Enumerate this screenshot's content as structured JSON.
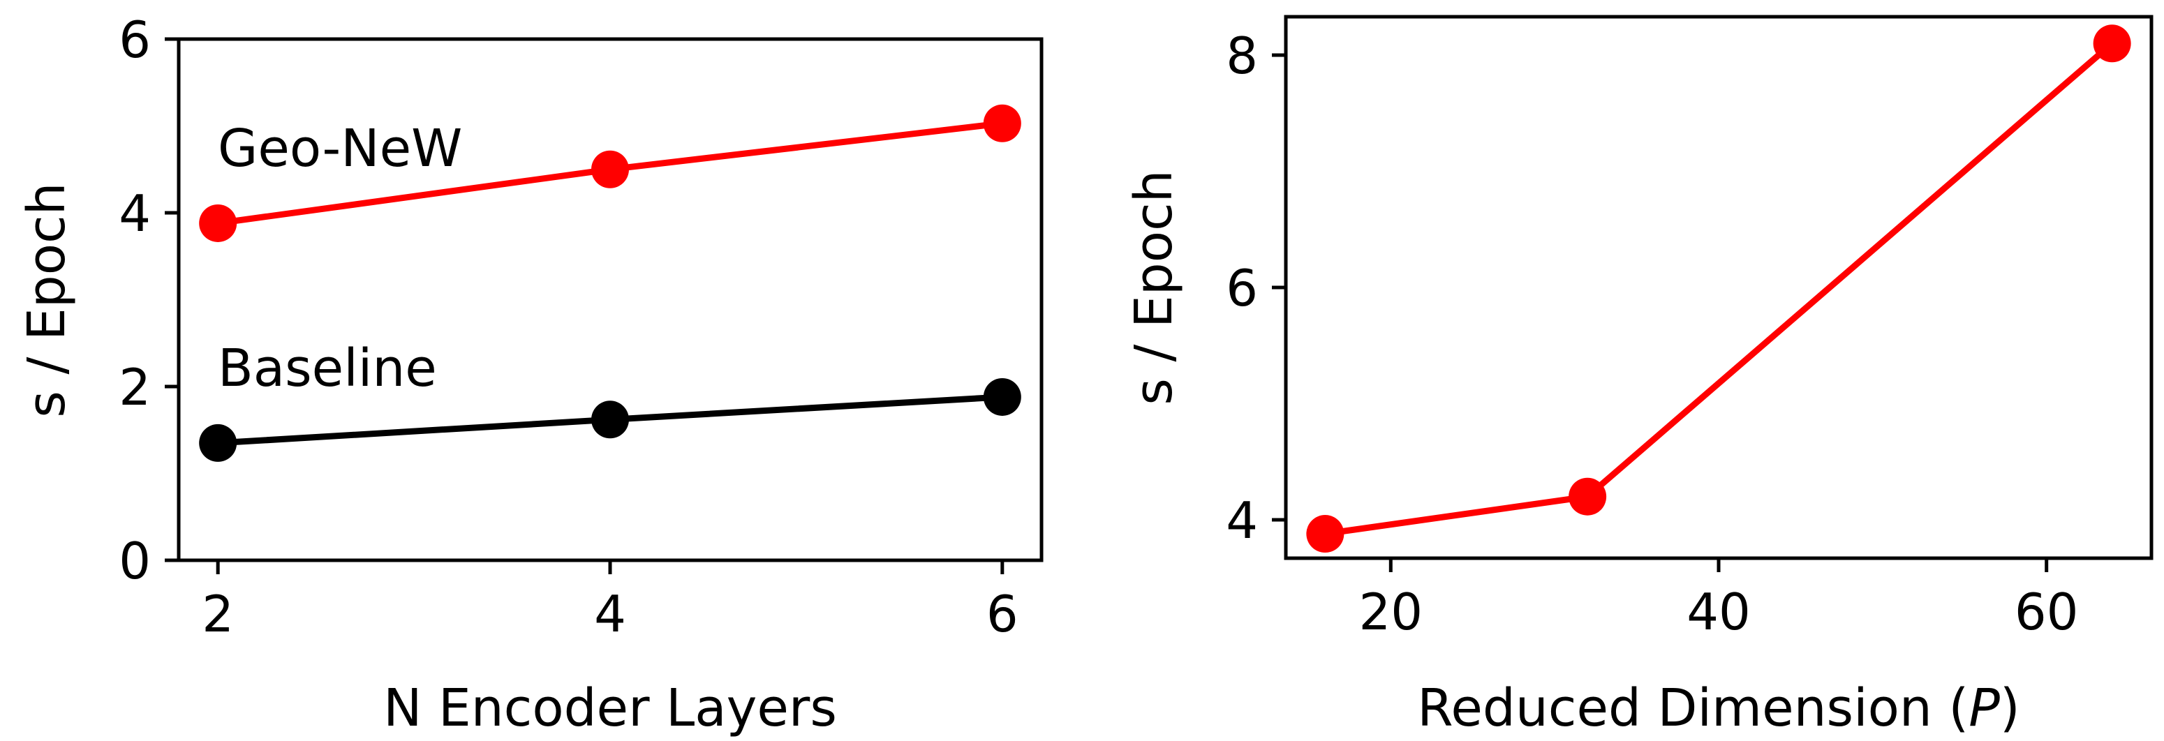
{
  "chart_data": [
    {
      "type": "line",
      "title": "",
      "xlabel": "N Encoder Layers",
      "ylabel": "s / Epoch",
      "x": [
        2,
        4,
        6
      ],
      "xticks": [
        2,
        4,
        6
      ],
      "yticks": [
        0,
        2,
        4,
        6
      ],
      "xlim": [
        1.8,
        6.2
      ],
      "ylim": [
        0,
        6
      ],
      "grid": false,
      "series": [
        {
          "name": "Geo-NeW",
          "values": [
            3.88,
            4.5,
            5.03
          ],
          "color": "#ff0000"
        },
        {
          "name": "Baseline",
          "values": [
            1.35,
            1.62,
            1.88
          ],
          "color": "#000000"
        }
      ]
    },
    {
      "type": "line",
      "title": "",
      "xlabel": "Reduced Dimension (P)",
      "ylabel": "s / Epoch",
      "x": [
        16,
        32,
        64
      ],
      "xticks": [
        20,
        40,
        60
      ],
      "yticks": [
        4,
        6,
        8
      ],
      "xlim": [
        13.6,
        66.4
      ],
      "ylim": [
        3.67,
        8.33
      ],
      "grid": false,
      "series": [
        {
          "values": [
            3.88,
            4.2,
            8.1
          ],
          "color": "#ff0000"
        }
      ]
    }
  ]
}
